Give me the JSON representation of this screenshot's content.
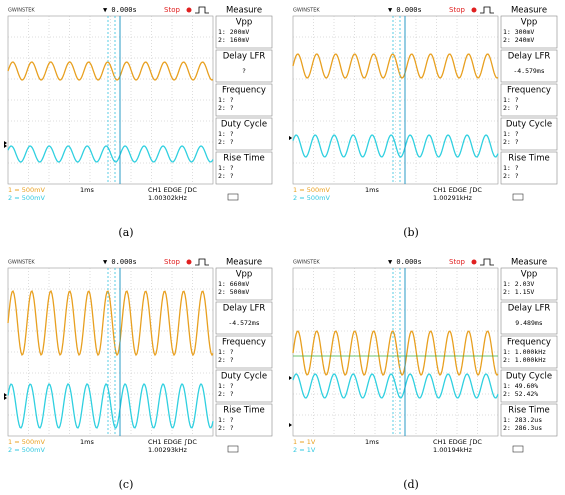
{
  "panels": [
    {
      "caption": "(a)",
      "header": {
        "brand": "GWINSTEK",
        "time": "▼ 0.000s",
        "stop": "Stop"
      },
      "measure": {
        "title": "Measure",
        "items": [
          {
            "name": "Vpp",
            "lines": [
              "1: 200mV",
              "2: 160mV"
            ]
          },
          {
            "name": "Delay LFR",
            "lines": [
              "?"
            ]
          },
          {
            "name": "Frequency",
            "lines": [
              "1:   ?",
              "2:   ?"
            ]
          },
          {
            "name": "Duty Cycle",
            "lines": [
              "1:   ?",
              "2:   ?"
            ]
          },
          {
            "name": "Rise Time",
            "lines": [
              "1:   ?",
              "2:   ?"
            ]
          }
        ]
      },
      "footer": {
        "ch1": "1 = 500mV",
        "ch2": "2 = 500mV",
        "timebase": "1ms",
        "trigger": "CH1  EDGE  ∫DC",
        "freq": "1.00302kHz"
      }
    },
    {
      "caption": "(b)",
      "header": {
        "brand": "GWINSTEK",
        "time": "▼ 0.000s",
        "stop": "Stop"
      },
      "measure": {
        "title": "Measure",
        "items": [
          {
            "name": "Vpp",
            "lines": [
              "1: 300mV",
              "2: 240mV"
            ]
          },
          {
            "name": "Delay LFR",
            "lines": [
              "-4.579ms"
            ]
          },
          {
            "name": "Frequency",
            "lines": [
              "1:   ?",
              "2:   ?"
            ]
          },
          {
            "name": "Duty Cycle",
            "lines": [
              "1:   ?",
              "2:   ?"
            ]
          },
          {
            "name": "Rise Time",
            "lines": [
              "1:   ?",
              "2:   ?"
            ]
          }
        ]
      },
      "footer": {
        "ch1": "1 = 500mV",
        "ch2": "2 = 500mV",
        "timebase": "1ms",
        "trigger": "CH1  EDGE  ∫DC",
        "freq": "1.00291kHz"
      }
    },
    {
      "caption": "(c)",
      "header": {
        "brand": "GWINSTEK",
        "time": "▼ 0.000s",
        "stop": "Stop"
      },
      "measure": {
        "title": "Measure",
        "items": [
          {
            "name": "Vpp",
            "lines": [
              "1: 660mV",
              "2: 500mV"
            ]
          },
          {
            "name": "Delay LFR",
            "lines": [
              "-4.572ms"
            ]
          },
          {
            "name": "Frequency",
            "lines": [
              "1:   ?",
              "2:   ?"
            ]
          },
          {
            "name": "Duty Cycle",
            "lines": [
              "1:   ?",
              "2:   ?"
            ]
          },
          {
            "name": "Rise Time",
            "lines": [
              "1:   ?",
              "2:   ?"
            ]
          }
        ]
      },
      "footer": {
        "ch1": "1 = 500mV",
        "ch2": "2 = 500mV",
        "timebase": "1ms",
        "trigger": "CH1  EDGE  ∫DC",
        "freq": "1.00293kHz"
      }
    },
    {
      "caption": "(d)",
      "header": {
        "brand": "GWINSTEK",
        "time": "▼ 0.000s",
        "stop": "Stop"
      },
      "measure": {
        "title": "Measure",
        "items": [
          {
            "name": "Vpp",
            "lines": [
              "1: 2.03V",
              "2: 1.15V"
            ]
          },
          {
            "name": "Delay LFR",
            "lines": [
              "9.489ms"
            ]
          },
          {
            "name": "Frequency",
            "lines": [
              "1: 1.000kHz",
              "2: 1.000kHz"
            ]
          },
          {
            "name": "Duty Cycle",
            "lines": [
              "1: 49.60%",
              "2: 52.42%"
            ]
          },
          {
            "name": "Rise Time",
            "lines": [
              "1: 283.2us",
              "2: 286.3us"
            ]
          }
        ]
      },
      "footer": {
        "ch1": "1 = 1V",
        "ch2": "2 = 1V",
        "timebase": "1ms",
        "trigger": "CH1  EDGE  ∫DC",
        "freq": "1.00194kHz"
      }
    }
  ]
}
